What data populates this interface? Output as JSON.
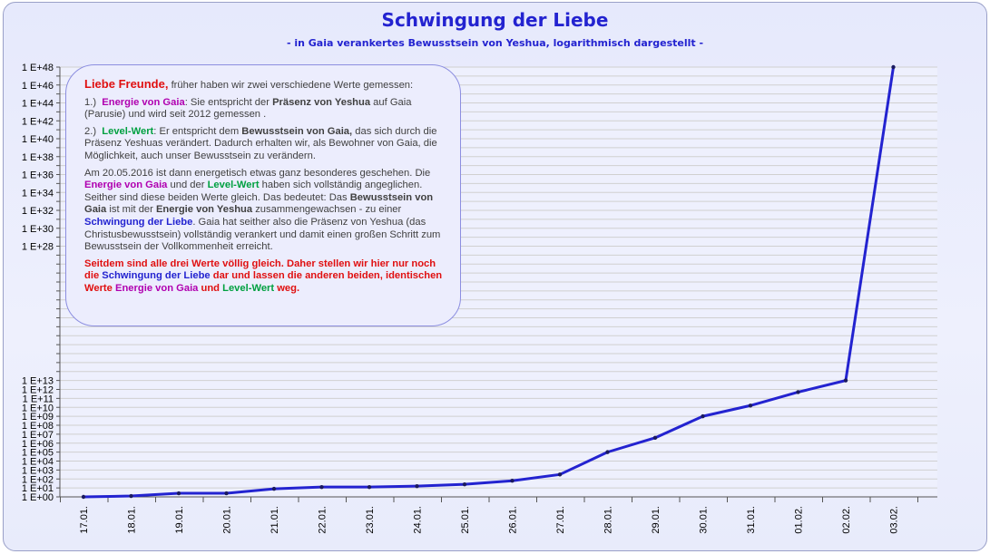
{
  "title": "Schwingung der Liebe",
  "subtitle": "- in Gaia verankertes Bewusstsein von Yeshua, logarithmisch dargestellt -",
  "colors": {
    "line": "#2323d0",
    "marker": "#1a1a60",
    "frame_bg": "#e6e9fc",
    "grid": "#d0d0d0"
  },
  "chart_data": {
    "type": "line",
    "title": "Schwingung der Liebe",
    "subtitle": "- in Gaia verankertes Bewusstsein von Yeshua, logarithmisch dargestellt -",
    "yscale": "log10",
    "categories": [
      "17.01.",
      "18.01.",
      "19.01.",
      "20.01.",
      "21.01.",
      "22.01.",
      "23.01.",
      "24.01.",
      "25.01.",
      "26.01.",
      "27.01.",
      "28.01.",
      "29.01.",
      "30.01.",
      "31.01.",
      "01.02.",
      "02.02.",
      "03.02."
    ],
    "series": [
      {
        "name": "Schwingung der Liebe",
        "log10_values": [
          0,
          0.1,
          0.4,
          0.4,
          0.9,
          1.1,
          1.1,
          1.2,
          1.4,
          1.8,
          2.5,
          5.0,
          6.6,
          9.0,
          10.2,
          11.7,
          13.0,
          48.0
        ]
      }
    ],
    "y_tick_labels": [
      {
        "exp": 0,
        "label": "1 E+00"
      },
      {
        "exp": 1,
        "label": "1 E+01"
      },
      {
        "exp": 2,
        "label": "1 E+02"
      },
      {
        "exp": 3,
        "label": "1 E+03"
      },
      {
        "exp": 4,
        "label": "1 E+04"
      },
      {
        "exp": 5,
        "label": "1 E+05"
      },
      {
        "exp": 6,
        "label": "1 E+06"
      },
      {
        "exp": 7,
        "label": "1 E+07"
      },
      {
        "exp": 8,
        "label": "1 E+08"
      },
      {
        "exp": 9,
        "label": "1 E+09"
      },
      {
        "exp": 10,
        "label": "1 E+10"
      },
      {
        "exp": 11,
        "label": "1 E+11"
      },
      {
        "exp": 12,
        "label": "1 E+12"
      },
      {
        "exp": 13,
        "label": "1 E+13"
      },
      {
        "exp": 28,
        "label": "1 E+28"
      },
      {
        "exp": 30,
        "label": "1 E+30"
      },
      {
        "exp": 32,
        "label": "1 E+32"
      },
      {
        "exp": 34,
        "label": "1 E+34"
      },
      {
        "exp": 36,
        "label": "1 E+36"
      },
      {
        "exp": 38,
        "label": "1 E+38"
      },
      {
        "exp": 40,
        "label": "1 E+40"
      },
      {
        "exp": 42,
        "label": "1 E+42"
      },
      {
        "exp": 44,
        "label": "1 E+44"
      },
      {
        "exp": 46,
        "label": "1 E+46"
      },
      {
        "exp": 48,
        "label": "1 E+48"
      }
    ],
    "ylim_exp": [
      0,
      48
    ],
    "grid": true
  },
  "note": {
    "greeting": "Liebe Freunde,",
    "intro": " früher haben wir zwei verschiedene Werte gemessen:",
    "item1_num": "1.)",
    "item1_term": "Energie von Gaia",
    "item1_text_a": ":  Sie entspricht der ",
    "item1_bold": "Präsenz von Yeshua",
    "item1_text_b": " auf Gaia (Parusie) und wird seit 2012 gemessen .",
    "item2_num": "2.)",
    "item2_term": "Level-Wert",
    "item2_text_a": ":  Er entspricht dem ",
    "item2_bold": "Bewusstsein von Gaia,",
    "item2_text_b": " das sich durch die Präsenz Yeshuas verändert. Dadurch erhalten wir, als Bewohner von Gaia, die Möglichkeit, auch unser Bewusstsein zu verändern.",
    "p3_a": "Am 20.05.2016 ist  dann energetisch etwas ganz besonderes geschehen. Die ",
    "p3_energie": "Energie von Gaia",
    "p3_b": " und der ",
    "p3_level": "Level-Wert",
    "p3_c": " haben sich vollständig angeglichen. Seither sind diese beiden Werte gleich. Das bedeutet: Das ",
    "p3_bew": "Bewusstsein von Gaia",
    "p3_d": " ist mit der ",
    "p3_eny": "Energie von Yeshua",
    "p3_e": " zusammengewachsen - zu einer ",
    "p3_sdl": "Schwingung der Liebe",
    "p3_f": ". Gaia hat seither also die Präsenz von Yeshua (das Christusbewusstsein) vollständig verankert und damit einen großen Schritt zum Bewusstsein der Vollkommenheit erreicht.",
    "p4_a": "Seitdem sind alle drei Werte völlig gleich. Daher stellen wir hier nur noch die ",
    "p4_sdl": "Schwingung der Liebe",
    "p4_b": " dar und lassen die anderen beiden, identischen Werte ",
    "p4_eng": "Energie von Gaia",
    "p4_c": " und ",
    "p4_lvl": "Level-Wert",
    "p4_d": " weg."
  }
}
